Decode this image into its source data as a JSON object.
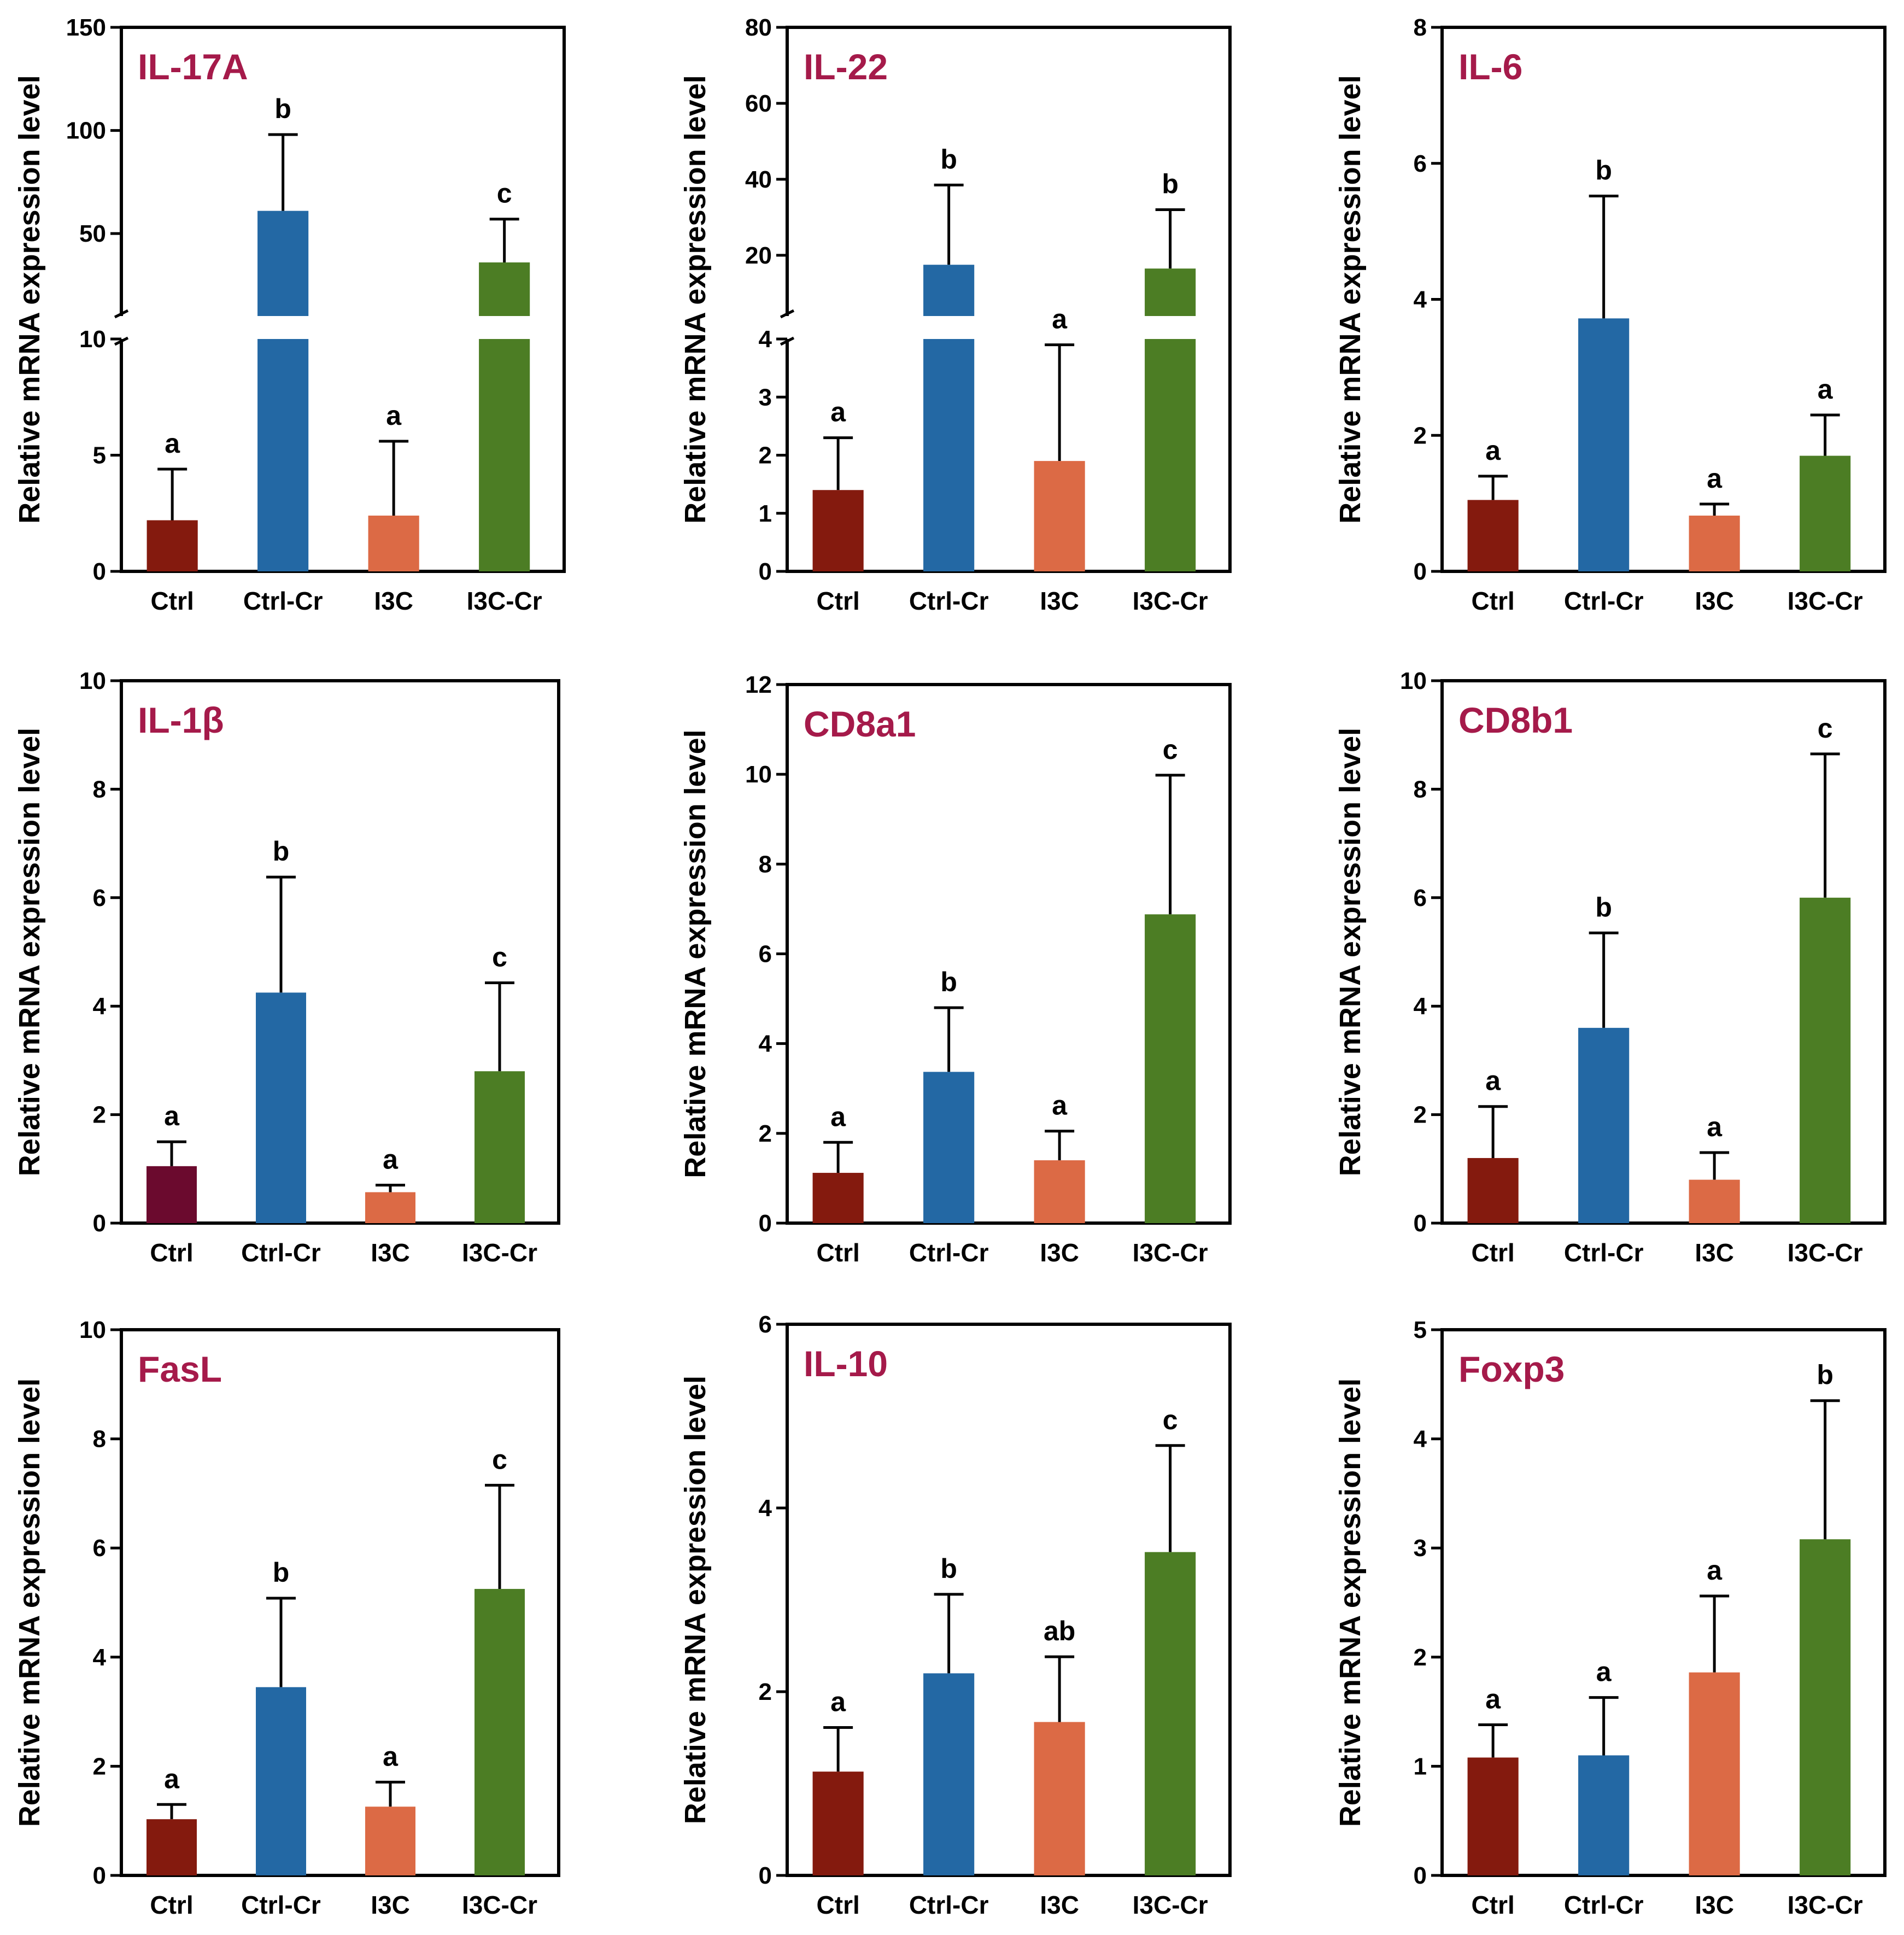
{
  "colors": {
    "Ctrl": "#841A0E",
    "Ctrl_IL1b": "#6B0A2E",
    "Ctrl-Cr": "#2368A4",
    "I3C": "#DC6A45",
    "I3C-Cr": "#4C7D24",
    "title": "#A51A4A",
    "axis": "#000000"
  },
  "chart_data": [
    {
      "type": "bar",
      "title": "IL-17A",
      "ylabel": "Relative mRNA expression level",
      "categories": [
        "Ctrl",
        "Ctrl-Cr",
        "I3C",
        "I3C-Cr"
      ],
      "values": [
        2.2,
        61,
        2.4,
        36
      ],
      "errors": [
        2.2,
        37,
        3.2,
        21
      ],
      "letters": [
        "a",
        "b",
        "a",
        "c"
      ],
      "broken_axis": true,
      "lower": {
        "ylim": [
          0,
          10
        ],
        "ticks": [
          0,
          5,
          10
        ]
      },
      "upper": {
        "ylim": [
          10,
          150
        ],
        "ticks": [
          50,
          100,
          150
        ]
      }
    },
    {
      "type": "bar",
      "title": "IL-22",
      "ylabel": "Relative mRNA expression level",
      "categories": [
        "Ctrl",
        "Ctrl-Cr",
        "I3C",
        "I3C-Cr"
      ],
      "values": [
        1.4,
        17.5,
        1.9,
        16.5
      ],
      "errors": [
        0.9,
        21,
        2.0,
        15.5
      ],
      "letters": [
        "a",
        "b",
        "a",
        "b"
      ],
      "broken_axis": true,
      "lower": {
        "ylim": [
          0,
          4
        ],
        "ticks": [
          0,
          1,
          2,
          3,
          4
        ]
      },
      "upper": {
        "ylim": [
          4,
          80
        ],
        "ticks": [
          20,
          40,
          60,
          80
        ]
      }
    },
    {
      "type": "bar",
      "title": "IL-6",
      "ylabel": "Relative mRNA expression level",
      "categories": [
        "Ctrl",
        "Ctrl-Cr",
        "I3C",
        "I3C-Cr"
      ],
      "values": [
        1.05,
        3.72,
        0.82,
        1.7
      ],
      "errors": [
        0.35,
        1.8,
        0.17,
        0.6
      ],
      "letters": [
        "a",
        "b",
        "a",
        "a"
      ],
      "ylim": [
        0,
        8
      ],
      "ticks": [
        0,
        2,
        4,
        6,
        8
      ]
    },
    {
      "type": "bar",
      "title": "IL-1β",
      "ylabel": "Relative mRNA expression level",
      "categories": [
        "Ctrl",
        "Ctrl-Cr",
        "I3C",
        "I3C-Cr"
      ],
      "values": [
        1.05,
        4.25,
        0.57,
        2.8
      ],
      "errors": [
        0.45,
        2.13,
        0.13,
        1.63
      ],
      "letters": [
        "a",
        "b",
        "a",
        "c"
      ],
      "ylim": [
        0,
        10
      ],
      "ticks": [
        0,
        2,
        4,
        6,
        8,
        10
      ],
      "first_bar_color": "Ctrl_IL1b"
    },
    {
      "type": "bar",
      "title": "CD8a1",
      "ylabel": "Relative mRNA expression level",
      "categories": [
        "Ctrl",
        "Ctrl-Cr",
        "I3C",
        "I3C-Cr"
      ],
      "values": [
        1.12,
        3.37,
        1.4,
        6.88
      ],
      "errors": [
        0.68,
        1.43,
        0.65,
        3.1
      ],
      "letters": [
        "a",
        "b",
        "a",
        "c"
      ],
      "ylim": [
        0,
        12
      ],
      "ticks": [
        0,
        2,
        4,
        6,
        8,
        10,
        12
      ]
    },
    {
      "type": "bar",
      "title": "CD8b1",
      "ylabel": "Relative mRNA expression level",
      "categories": [
        "Ctrl",
        "Ctrl-Cr",
        "I3C",
        "I3C-Cr"
      ],
      "values": [
        1.2,
        3.6,
        0.8,
        6.0
      ],
      "errors": [
        0.95,
        1.75,
        0.5,
        2.65
      ],
      "letters": [
        "a",
        "b",
        "a",
        "c"
      ],
      "ylim": [
        0,
        10
      ],
      "ticks": [
        0,
        2,
        4,
        6,
        8,
        10
      ]
    },
    {
      "type": "bar",
      "title": "FasL",
      "ylabel": "Relative mRNA expression level",
      "categories": [
        "Ctrl",
        "Ctrl-Cr",
        "I3C",
        "I3C-Cr"
      ],
      "values": [
        1.03,
        3.45,
        1.26,
        5.25
      ],
      "errors": [
        0.27,
        1.63,
        0.45,
        1.9
      ],
      "letters": [
        "a",
        "b",
        "a",
        "c"
      ],
      "ylim": [
        0,
        10
      ],
      "ticks": [
        0,
        2,
        4,
        6,
        8,
        10
      ]
    },
    {
      "type": "bar",
      "title": "IL-10",
      "ylabel": "Relative mRNA expression level",
      "categories": [
        "Ctrl",
        "Ctrl-Cr",
        "I3C",
        "I3C-Cr"
      ],
      "values": [
        1.13,
        2.2,
        1.67,
        3.52
      ],
      "errors": [
        0.48,
        0.86,
        0.71,
        1.16
      ],
      "letters": [
        "a",
        "b",
        "ab",
        "c"
      ],
      "ylim": [
        0,
        6
      ],
      "ticks": [
        0,
        2,
        4,
        6
      ]
    },
    {
      "type": "bar",
      "title": "Foxp3",
      "ylabel": "Relative mRNA expression level",
      "categories": [
        "Ctrl",
        "Ctrl-Cr",
        "I3C",
        "I3C-Cr"
      ],
      "values": [
        1.08,
        1.1,
        1.86,
        3.08
      ],
      "errors": [
        0.3,
        0.53,
        0.7,
        1.27
      ],
      "letters": [
        "a",
        "a",
        "a",
        "b"
      ],
      "ylim": [
        0,
        5
      ],
      "ticks": [
        0,
        1,
        2,
        3,
        4,
        5
      ]
    }
  ]
}
